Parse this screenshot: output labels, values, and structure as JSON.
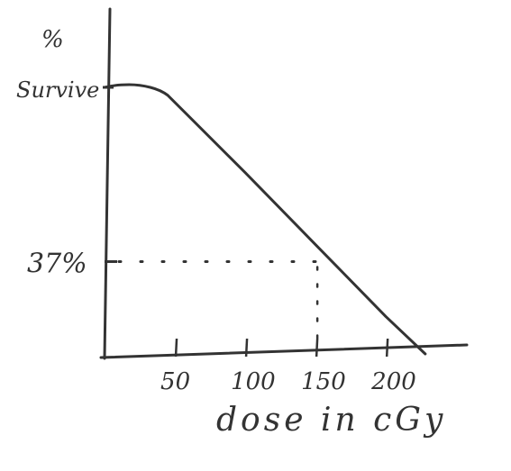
{
  "chart_data": {
    "type": "line",
    "title": "",
    "ylabel_line1": "%",
    "ylabel_line2": "Survive",
    "xlabel": "dose in cGy",
    "x_ticks": [
      "50",
      "100",
      "150",
      "200"
    ],
    "y_ticks": [
      "37%"
    ],
    "xlim": [
      0,
      230
    ],
    "ylim": [
      0,
      100
    ],
    "series": [
      {
        "x": [
          0,
          10,
          25,
          40,
          50,
          100,
          150,
          200,
          228
        ],
        "y": [
          100,
          101,
          101,
          99,
          95,
          68,
          41,
          14,
          0
        ]
      }
    ],
    "reference_point": {
      "x": 150,
      "y": 37
    },
    "grid": false,
    "colors": {
      "ink": "#333333"
    }
  }
}
